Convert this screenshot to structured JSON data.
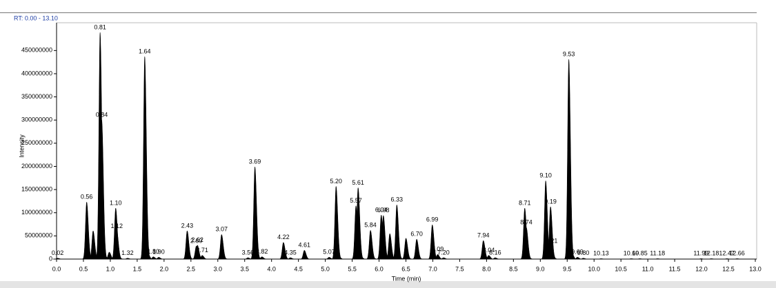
{
  "chart_data": {
    "type": "chromatogram",
    "title": "RT: 0.00 - 13.10",
    "x_label": "Time (min)",
    "y_label": "Intensity",
    "color": "#000000",
    "x": [
      0.02,
      0.56,
      0.68,
      0.81,
      0.84,
      0.98,
      1.1,
      1.12,
      1.32,
      1.64,
      1.8,
      1.9,
      2.43,
      2.6,
      2.62,
      2.71,
      3.07,
      3.56,
      3.69,
      3.82,
      4.22,
      4.35,
      4.61,
      5.07,
      5.2,
      5.57,
      5.61,
      5.84,
      6.04,
      6.08,
      6.2,
      6.33,
      6.5,
      6.7,
      6.99,
      7.09,
      7.2,
      7.94,
      8.04,
      8.16,
      8.71,
      8.74,
      9.1,
      9.19,
      9.21,
      9.53,
      9.69,
      9.8,
      10.13,
      10.69,
      10.85,
      11.18,
      11.99,
      12.18,
      12.47,
      12.66
    ],
    "peak_labels": [
      "0.02",
      "0.56",
      null,
      "0.81",
      "0.84",
      null,
      "1.10",
      "1.12",
      "1.32",
      "1.64",
      "1.80",
      "1.90",
      "2.43",
      "2.60",
      "2.62",
      "2.71",
      "3.07",
      "3.56",
      "3.69",
      "3.82",
      "4.22",
      "4.35",
      "4.61",
      "5.07",
      "5.20",
      "5.57",
      "5.61",
      "5.84",
      "6.04",
      "6.08",
      null,
      "6.33",
      null,
      "6.70",
      "6.99",
      "7.09",
      "7.20",
      "7.94",
      "8.04",
      "8.16",
      "8.71",
      "8.74",
      "9.10",
      "9.19",
      "9.21",
      "9.53",
      "9.69",
      "9.80",
      "10.13",
      "10.69",
      "10.85",
      "11.18",
      "11.99",
      "12.18",
      "12.47",
      "12.66"
    ],
    "values": [
      2000000,
      123000000,
      61000000,
      489000000,
      300000000,
      15000000,
      110000000,
      60000000,
      2000000,
      437000000,
      5000000,
      4000000,
      61000000,
      28000000,
      30000000,
      8000000,
      53000000,
      3000000,
      199000000,
      5000000,
      36000000,
      3000000,
      19000000,
      4000000,
      157000000,
      115000000,
      154000000,
      62000000,
      95000000,
      94000000,
      55000000,
      117000000,
      45000000,
      43000000,
      74000000,
      10000000,
      3000000,
      40000000,
      8000000,
      3000000,
      110000000,
      68000000,
      169000000,
      113000000,
      28000000,
      431000000,
      4000000,
      2000000,
      1000000,
      1000000,
      1000000,
      1000000,
      1000000,
      1000000,
      1000000,
      1000000
    ],
    "xlim": [
      0,
      13
    ],
    "ylim": [
      0,
      510000000
    ],
    "yticks": [
      0,
      50000000,
      100000000,
      150000000,
      200000000,
      250000000,
      300000000,
      350000000,
      400000000,
      450000000
    ],
    "xticks": [
      {
        "value": 0,
        "label": "0.0"
      },
      {
        "value": 0.5,
        "label": "0.5"
      },
      {
        "value": 1,
        "label": "1.0"
      },
      {
        "value": 1.5,
        "label": "1.5"
      },
      {
        "value": 2,
        "label": "2.0"
      },
      {
        "value": 2.5,
        "label": "2.5"
      },
      {
        "value": 3,
        "label": "3.0"
      },
      {
        "value": 3.5,
        "label": "3.5"
      },
      {
        "value": 4,
        "label": "4.0"
      },
      {
        "value": 4.5,
        "label": "4.5"
      },
      {
        "value": 5,
        "label": "5.0"
      },
      {
        "value": 5.5,
        "label": "5.5"
      },
      {
        "value": 6,
        "label": "6.0"
      },
      {
        "value": 6.5,
        "label": "6.5"
      },
      {
        "value": 7,
        "label": "7.0"
      },
      {
        "value": 7.5,
        "label": "7.5"
      },
      {
        "value": 8,
        "label": "8.0"
      },
      {
        "value": 8.5,
        "label": "8.5"
      },
      {
        "value": 9,
        "label": "9.0"
      },
      {
        "value": 9.5,
        "label": "9.5"
      },
      {
        "value": 10,
        "label": "10.0"
      },
      {
        "value": 10.5,
        "label": "10.5"
      },
      {
        "value": 11,
        "label": "11.0"
      },
      {
        "value": 11.5,
        "label": "11.5"
      },
      {
        "value": 12,
        "label": "12.0"
      },
      {
        "value": 12.5,
        "label": "12.5"
      },
      {
        "value": 13,
        "label": "13.0"
      }
    ]
  }
}
